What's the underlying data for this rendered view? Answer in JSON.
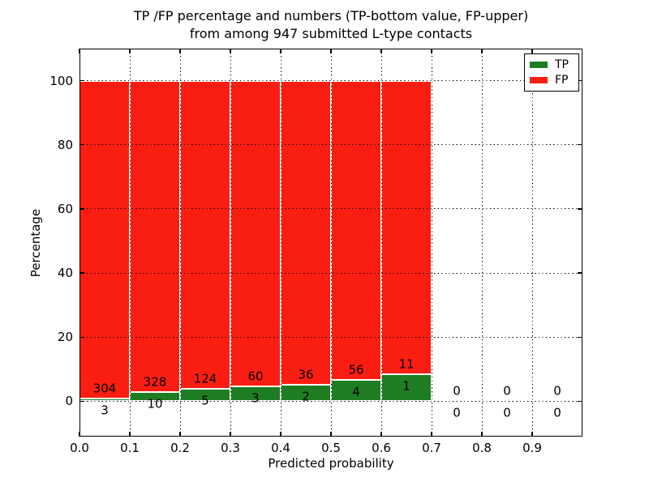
{
  "figure": {
    "title_line1": "TP /FP percentage and numbers (TP-bottom value, FP-upper)",
    "title_line2": "from among 947 submitted L-type contacts",
    "xlabel": "Predicted probability",
    "ylabel": "Percentage"
  },
  "chart_data": {
    "type": "bar",
    "stacked": true,
    "normalized_to_percent": true,
    "title": "TP /FP percentage and numbers (TP-bottom value, FP-upper) from among 947 submitted L-type contacts",
    "xlabel": "Predicted probability",
    "ylabel": "Percentage",
    "total_contacts": 947,
    "xlim": [
      0.0,
      1.0
    ],
    "ylim": [
      -11,
      110
    ],
    "bin_width": 0.1,
    "xticks": [
      "0.0",
      "0.1",
      "0.2",
      "0.3",
      "0.4",
      "0.5",
      "0.6",
      "0.7",
      "0.8",
      "0.9"
    ],
    "yticks": [
      0,
      20,
      40,
      60,
      80,
      100
    ],
    "grid": {
      "style": "dotted",
      "color": "#000000",
      "drawn_above_bars": true
    },
    "colors": {
      "tp": "#1e7d23",
      "fp": "#fa1e12",
      "bar_edge": "#ffffff"
    },
    "series": [
      {
        "name": "TP",
        "color": "#1e7d23",
        "values": [
          3,
          10,
          5,
          3,
          2,
          4,
          1,
          0,
          0,
          0
        ]
      },
      {
        "name": "FP",
        "color": "#fa1e12",
        "values": [
          304,
          328,
          124,
          60,
          36,
          56,
          11,
          0,
          0,
          0
        ]
      }
    ],
    "bins": [
      {
        "x_start": 0.0,
        "x_end": 0.1,
        "tp_count": 3,
        "fp_count": 304
      },
      {
        "x_start": 0.1,
        "x_end": 0.2,
        "tp_count": 10,
        "fp_count": 328
      },
      {
        "x_start": 0.2,
        "x_end": 0.3,
        "tp_count": 5,
        "fp_count": 124
      },
      {
        "x_start": 0.3,
        "x_end": 0.4,
        "tp_count": 3,
        "fp_count": 60
      },
      {
        "x_start": 0.4,
        "x_end": 0.5,
        "tp_count": 2,
        "fp_count": 36
      },
      {
        "x_start": 0.5,
        "x_end": 0.6,
        "tp_count": 4,
        "fp_count": 56
      },
      {
        "x_start": 0.6,
        "x_end": 0.7,
        "tp_count": 1,
        "fp_count": 11
      },
      {
        "x_start": 0.7,
        "x_end": 0.8,
        "tp_count": 0,
        "fp_count": 0
      },
      {
        "x_start": 0.8,
        "x_end": 0.9,
        "tp_count": 0,
        "fp_count": 0
      },
      {
        "x_start": 0.9,
        "x_end": 1.0,
        "tp_count": 0,
        "fp_count": 0
      }
    ],
    "legend": {
      "position": "upper right",
      "entries": [
        {
          "label": "TP",
          "color": "#1e7d23"
        },
        {
          "label": "FP",
          "color": "#fa1e12"
        }
      ]
    }
  }
}
